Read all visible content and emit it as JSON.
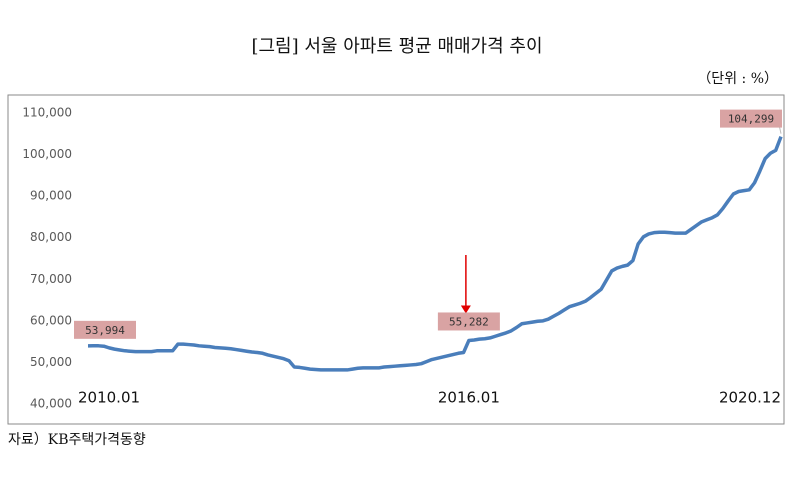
{
  "chart_data": {
    "type": "line",
    "title": "[그림] 서울 아파트 평균 매매가격 추이",
    "unit_note": "（단위 : %）",
    "source": "자료）KB주택가격동향",
    "categories": [
      "2010.01",
      null,
      null,
      null,
      null,
      null,
      null,
      null,
      null,
      null,
      null,
      null,
      null,
      null,
      null,
      null,
      null,
      null,
      null,
      null,
      null,
      null,
      null,
      null,
      null,
      null,
      null,
      null,
      null,
      null,
      null,
      null,
      null,
      null,
      null,
      null,
      null,
      null,
      null,
      null,
      null,
      null,
      null,
      null,
      null,
      null,
      null,
      null,
      null,
      null,
      null,
      null,
      null,
      null,
      null,
      null,
      null,
      null,
      null,
      null,
      null,
      null,
      null,
      null,
      null,
      null,
      null,
      null,
      null,
      null,
      null,
      null,
      "2016.01",
      null,
      null,
      null,
      null,
      null,
      null,
      null,
      null,
      null,
      null,
      null,
      null,
      null,
      null,
      null,
      null,
      null,
      null,
      null,
      null,
      null,
      null,
      null,
      null,
      null,
      null,
      null,
      null,
      null,
      null,
      null,
      null,
      null,
      null,
      null,
      null,
      null,
      null,
      null,
      null,
      null,
      null,
      null,
      null,
      null,
      null,
      null,
      null,
      null,
      null,
      null,
      null,
      null,
      null,
      null,
      null,
      null,
      null,
      "2020.12"
    ],
    "values": [
      53994,
      54000,
      54000,
      53900,
      53500,
      53200,
      53000,
      52800,
      52700,
      52600,
      52600,
      52600,
      52600,
      52800,
      52800,
      52800,
      52800,
      54400,
      54400,
      54300,
      54200,
      54000,
      53900,
      53800,
      53600,
      53500,
      53400,
      53300,
      53100,
      52900,
      52700,
      52500,
      52400,
      52200,
      51800,
      51500,
      51200,
      50900,
      50400,
      48900,
      48800,
      48600,
      48400,
      48300,
      48200,
      48200,
      48200,
      48200,
      48200,
      48200,
      48400,
      48600,
      48700,
      48700,
      48700,
      48700,
      48900,
      49000,
      49100,
      49200,
      49300,
      49400,
      49500,
      49700,
      50200,
      50700,
      51000,
      51300,
      51600,
      51900,
      52200,
      52400,
      55282,
      55400,
      55600,
      55700,
      55900,
      56300,
      56700,
      57100,
      57600,
      58400,
      59300,
      59500,
      59700,
      59900,
      60000,
      60400,
      61100,
      61800,
      62600,
      63400,
      63800,
      64200,
      64700,
      65600,
      66600,
      67600,
      69800,
      72000,
      72700,
      73100,
      73400,
      74500,
      78500,
      80200,
      80900,
      81200,
      81300,
      81300,
      81200,
      81100,
      81100,
      81100,
      82000,
      82900,
      83800,
      84300,
      84800,
      85500,
      87000,
      88800,
      90500,
      91100,
      91300,
      91500,
      93200,
      96000,
      99000,
      100300,
      101000,
      104299
    ],
    "value_labels": [
      "53,994",
      null,
      null,
      null,
      null,
      null,
      null,
      null,
      null,
      null,
      null,
      null,
      null,
      null,
      null,
      null,
      null,
      null,
      null,
      null,
      null,
      null,
      null,
      null,
      null,
      null,
      null,
      null,
      null,
      null,
      null,
      null,
      null,
      null,
      null,
      null,
      null,
      null,
      null,
      null,
      null,
      null,
      null,
      null,
      null,
      null,
      null,
      null,
      null,
      null,
      null,
      null,
      null,
      null,
      null,
      null,
      null,
      null,
      null,
      null,
      null,
      null,
      null,
      null,
      null,
      null,
      null,
      null,
      null,
      null,
      null,
      null,
      "55,282",
      null,
      null,
      null,
      null,
      null,
      null,
      null,
      null,
      null,
      null,
      null,
      null,
      null,
      null,
      null,
      null,
      null,
      null,
      null,
      null,
      null,
      null,
      null,
      null,
      null,
      null,
      null,
      null,
      null,
      null,
      null,
      null,
      null,
      null,
      null,
      null,
      null,
      null,
      null,
      null,
      null,
      null,
      null,
      null,
      null,
      null,
      null,
      null,
      null,
      null,
      null,
      null,
      null,
      null,
      null,
      null,
      null,
      null,
      "104,299"
    ],
    "color": "#4a7ebb",
    "label_color": "#d9a3a3",
    "arrow_color": "#e00000",
    "ylim": [
      35200,
      114300
    ],
    "yticks": [
      {
        "value": 40000,
        "label": "40,000"
      },
      {
        "value": 50000,
        "label": "50,000"
      },
      {
        "value": 60000,
        "label": "60,000"
      },
      {
        "value": 70000,
        "label": "70,000"
      },
      {
        "value": 80000,
        "label": "80,000"
      },
      {
        "value": 90000,
        "label": "90,000"
      },
      {
        "value": 100000,
        "label": "100,000"
      },
      {
        "value": 110000,
        "label": "110,000"
      }
    ],
    "grid": false
  }
}
